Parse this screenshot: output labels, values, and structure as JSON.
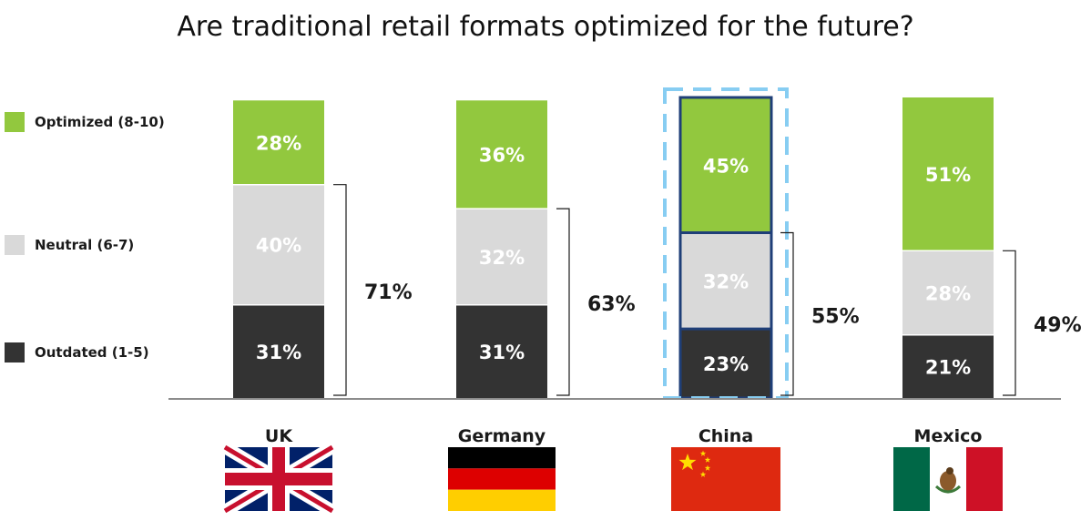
{
  "chart_data": {
    "type": "bar",
    "stacked": true,
    "title": "Are traditional retail formats optimized for the future?",
    "categories": [
      "UK",
      "Germany",
      "China",
      "Mexico"
    ],
    "series": [
      {
        "name": "Outdated (1-5)",
        "values": [
          31,
          31,
          23,
          21
        ],
        "labels": [
          "31%",
          "31%",
          "23%",
          "21%"
        ],
        "color": "#333333"
      },
      {
        "name": "Neutral (6-7)",
        "values": [
          40,
          32,
          32,
          28
        ],
        "labels": [
          "40%",
          "32%",
          "32%",
          "28%"
        ],
        "color": "#d9d9d9"
      },
      {
        "name": "Optimized (8-10)",
        "values": [
          28,
          36,
          45,
          51
        ],
        "labels": [
          "28%",
          "36%",
          "45%",
          "51%"
        ],
        "color": "#92c83e"
      }
    ],
    "bracket_totals": [
      "71%",
      "63%",
      "55%",
      "49%"
    ],
    "highlighted_category": "China",
    "highlight_color": "#87cdf2",
    "highlight_border_color": "#1f3f78",
    "legend_placement": "left",
    "grid": false,
    "flag_icons": [
      "uk-flag-icon",
      "germany-flag-icon",
      "china-flag-icon",
      "mexico-flag-icon"
    ]
  }
}
